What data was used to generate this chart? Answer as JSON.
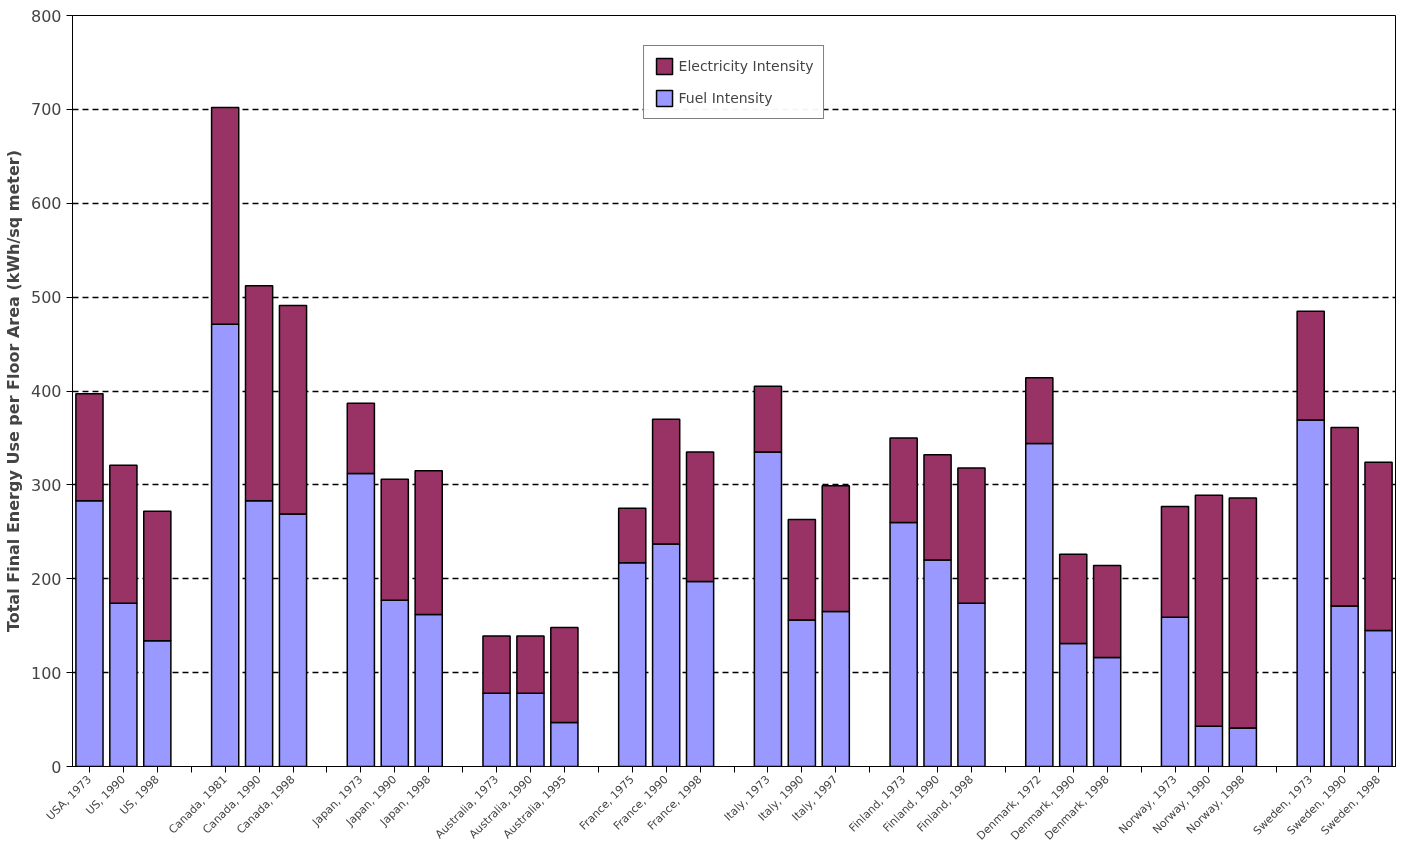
{
  "chart_data": {
    "type": "bar",
    "stacked": true,
    "ylabel": "Total Final Energy Use per Floor Area (kWh/sq meter)",
    "categories": [
      "USA, 1973",
      "US, 1990",
      "US, 1998",
      null,
      "Canada, 1981",
      "Canada, 1990",
      "Canada, 1998",
      null,
      "Japan, 1973",
      "Japan, 1990",
      "Japan, 1998",
      null,
      "Australia, 1973",
      "Australia, 1990",
      "Australia, 1995",
      null,
      "France, 1975",
      "France, 1990",
      "France, 1998",
      null,
      "Italy, 1973",
      "Italy, 1990",
      "Italy, 1997",
      null,
      "Finland, 1973",
      "Finland, 1990",
      "Finland, 1998",
      null,
      "Denmark, 1972",
      "Denmark, 1990",
      "Denmark, 1998",
      null,
      "Norway, 1973",
      "Norway, 1990",
      "Norway, 1998",
      null,
      "Sweden, 1973",
      "Sweden, 1990",
      "Sweden, 1998"
    ],
    "series": [
      {
        "name": "Fuel Intensity",
        "color": "#9999ff",
        "values": [
          283,
          174,
          134,
          null,
          471,
          283,
          269,
          null,
          312,
          177,
          162,
          null,
          78,
          78,
          47,
          null,
          217,
          237,
          197,
          null,
          335,
          156,
          165,
          null,
          260,
          220,
          174,
          null,
          344,
          131,
          116,
          null,
          159,
          43,
          41,
          null,
          369,
          171,
          145
        ]
      },
      {
        "name": "Electricity Intensity",
        "color": "#993366",
        "values": [
          114,
          147,
          138,
          null,
          231,
          229,
          222,
          null,
          75,
          129,
          153,
          null,
          61,
          61,
          101,
          null,
          58,
          133,
          138,
          null,
          70,
          107,
          134,
          null,
          90,
          112,
          144,
          null,
          70,
          95,
          98,
          null,
          118,
          246,
          245,
          null,
          116,
          190,
          179
        ]
      }
    ],
    "ylim": [
      0,
      800
    ],
    "yticks": [
      0,
      100,
      200,
      300,
      400,
      500,
      600,
      700,
      800
    ],
    "grid": "y",
    "legend": "top"
  }
}
